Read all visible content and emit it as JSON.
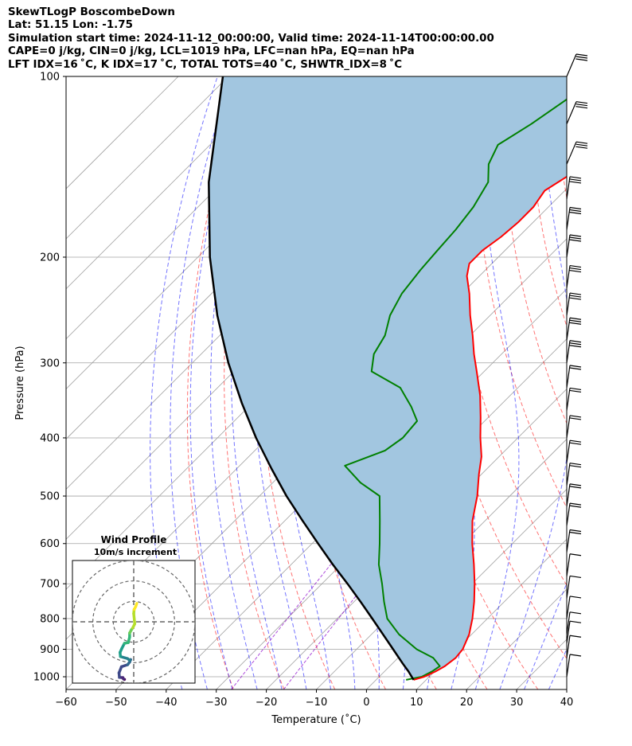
{
  "header": {
    "line1": "SkewTLogP BoscombeDown",
    "line2": "Lat: 51.15   Lon: -1.75",
    "line3": "Simulation start time: 2024-11-12_00:00:00, Valid time: 2024-11-14T00:00:00.00",
    "line4": "CAPE=0 j/kg, CIN=0 j/kg, LCL=1019 hPa, LFC=nan hPa, EQ=nan hPa",
    "line5": "LFT IDX=16 ˚C, K IDX=17 ˚C, TOTAL TOTS=40 ˚C, SHWTR_IDX=8 ˚C"
  },
  "colors": {
    "temperature": "#ff0000",
    "dewpoint": "#008000",
    "parcel": "#000000",
    "cape_fill": "#a2c6e0",
    "dry_adiabat": "#ff0000",
    "moist_adiabat": "#0000ff",
    "mixing_ratio": "#8b00cc",
    "isotherm": "#a0a0a0"
  },
  "chart_data": [
    {
      "type": "line",
      "title": "",
      "xlabel": "Temperature (˚C)",
      "ylabel": "Pressure (hPa)",
      "xlim": [
        -60,
        40
      ],
      "ylim": [
        1050,
        100
      ],
      "yscale": "log",
      "skew": true,
      "grid": true,
      "xticks": [
        "−60",
        "−50",
        "−40",
        "−30",
        "−20",
        "−10",
        "0",
        "10",
        "20",
        "30",
        "40"
      ],
      "yticks": [
        "100",
        "200",
        "300",
        "400",
        "500",
        "600",
        "700",
        "800",
        "900",
        "1000"
      ],
      "series": [
        {
          "role": "temperature",
          "p": [
            1012,
            1000,
            980,
            960,
            930,
            900,
            850,
            800,
            750,
            700,
            650,
            600,
            550,
            500,
            460,
            430,
            400,
            370,
            340,
            310,
            290,
            270,
            250,
            230,
            215,
            205,
            195,
            185,
            175,
            165,
            155,
            145,
            135,
            125,
            115,
            108,
            100
          ],
          "t": [
            7.5,
            9.0,
            10.2,
            11.0,
            11.5,
            11.2,
            9.5,
            7.0,
            4.0,
            0.5,
            -3.5,
            -8.0,
            -12.5,
            -16.5,
            -20.5,
            -23.5,
            -27.5,
            -31.5,
            -36.0,
            -41.5,
            -45.5,
            -49.5,
            -54.0,
            -58.5,
            -62.5,
            -64.5,
            -64.5,
            -63.5,
            -63.0,
            -63.0,
            -64.0,
            -62.0,
            -60.0,
            -58.5,
            -57.0,
            -55.5,
            -55.0
          ]
        },
        {
          "role": "dewpoint",
          "p": [
            1012,
            1000,
            980,
            960,
            930,
            900,
            850,
            800,
            750,
            700,
            650,
            600,
            550,
            500,
            475,
            445,
            420,
            400,
            375,
            355,
            330,
            310,
            290,
            270,
            250,
            230,
            210,
            195,
            180,
            165,
            150,
            140,
            130,
            120,
            110,
            100
          ],
          "t": [
            6.0,
            8.5,
            9.5,
            10.0,
            7.0,
            2.0,
            -4.5,
            -10.0,
            -14.0,
            -18.0,
            -22.5,
            -26.5,
            -31.0,
            -36.0,
            -42.5,
            -49.0,
            -44.0,
            -43.0,
            -43.5,
            -47.5,
            -53.5,
            -62.5,
            -65.5,
            -67.0,
            -70.0,
            -72.0,
            -73.0,
            -73.5,
            -74.0,
            -75.0,
            -77.0,
            -80.5,
            -82.5,
            -80.0,
            -78.0,
            -76.0
          ]
        },
        {
          "role": "parcel",
          "p": [
            1012,
            980,
            950,
            900,
            850,
            800,
            750,
            700,
            650,
            600,
            550,
            500,
            450,
            400,
            350,
            300,
            250,
            200,
            150,
            100
          ],
          "t": [
            7.5,
            4.8,
            2.0,
            -2.7,
            -7.7,
            -13.0,
            -18.7,
            -24.9,
            -31.7,
            -38.8,
            -46.4,
            -54.6,
            -63.1,
            -72.3,
            -82.1,
            -92.8,
            -104.5,
            -117.6,
            -132.8,
            -151.1
          ]
        }
      ]
    },
    {
      "type": "line",
      "title": "Wind Profile",
      "subtitle": "10m/s increment",
      "xlim": [
        -30,
        30
      ],
      "ylim": [
        -30,
        30
      ],
      "rings": [
        10,
        20,
        30
      ],
      "hodograph": {
        "u": [
          -4.5,
          -5.0,
          -5.3,
          -7.0,
          -7.2,
          -6.0,
          -3.0,
          -2.0,
          -1.5,
          -2.0,
          -3.0,
          -6.5,
          -6.7,
          -5.8,
          -4.5,
          -2.7,
          -2.0,
          -2.0,
          -1.2,
          -0.5,
          0.5,
          0.0,
          0.2,
          1.0,
          1.5
        ],
        "v": [
          -28.2,
          -28.0,
          -27.3,
          -27.2,
          -25.0,
          -22.0,
          -21.0,
          -19.7,
          -18.5,
          -18.8,
          -18.0,
          -17.0,
          -15.0,
          -13.0,
          -10.5,
          -10.2,
          -7.5,
          -5.5,
          -4.0,
          -3.0,
          -1.0,
          4.0,
          6.0,
          7.5,
          9.0
        ]
      }
    }
  ]
}
